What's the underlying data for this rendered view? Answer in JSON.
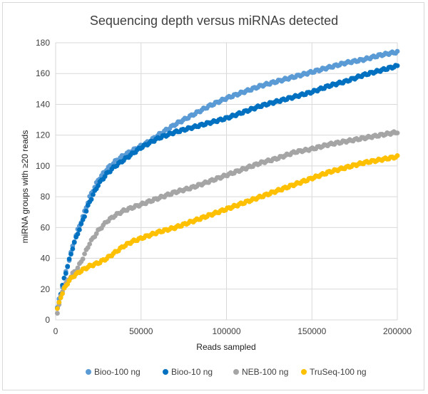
{
  "chart_data": {
    "type": "scatter",
    "title": "Sequencing depth versus miRNAs detected",
    "xlabel": "Reads sampled",
    "ylabel": "miRNA groups with ≥20 reads",
    "xlim": [
      0,
      200000
    ],
    "ylim": [
      0,
      180
    ],
    "x_ticks": [
      "0",
      "50000",
      "100000",
      "150000",
      "200000"
    ],
    "y_ticks": [
      "0",
      "20",
      "40",
      "60",
      "80",
      "100",
      "120",
      "140",
      "160",
      "180"
    ],
    "grid": true,
    "legend_position": "bottom",
    "series": [
      {
        "name": "Bioo-100 ng",
        "color": "#5b9bd5",
        "x": [
          1000,
          2000,
          3000,
          5000,
          7500,
          10000,
          12500,
          15000,
          20000,
          25000,
          30000,
          35000,
          40000,
          45000,
          50000,
          55000,
          60000,
          70000,
          80000,
          90000,
          100000,
          110000,
          120000,
          130000,
          140000,
          150000,
          160000,
          170000,
          180000,
          190000,
          200000
        ],
        "y": [
          8,
          13,
          17,
          27,
          37,
          48,
          57,
          64,
          80,
          91,
          98,
          103,
          107,
          110,
          113,
          116,
          120,
          127,
          133,
          139,
          144,
          148,
          152,
          155,
          158,
          161,
          164,
          167,
          169,
          172,
          174
        ]
      },
      {
        "name": "Bioo-10 ng",
        "color": "#0070c0",
        "x": [
          1000,
          2000,
          3000,
          5000,
          7500,
          10000,
          12500,
          15000,
          20000,
          25000,
          30000,
          35000,
          40000,
          45000,
          50000,
          55000,
          60000,
          70000,
          80000,
          90000,
          100000,
          110000,
          120000,
          130000,
          140000,
          150000,
          160000,
          170000,
          180000,
          190000,
          200000
        ],
        "y": [
          7,
          12,
          17,
          27,
          37,
          47,
          55,
          62,
          77,
          88,
          95,
          100,
          104,
          108,
          112,
          115,
          118,
          122,
          125,
          128,
          131,
          135,
          139,
          142,
          145,
          148,
          152,
          155,
          159,
          162,
          165
        ]
      },
      {
        "name": "NEB-100 ng",
        "color": "#a5a5a5",
        "x": [
          1000,
          2000,
          3000,
          5000,
          7500,
          10000,
          12500,
          15000,
          20000,
          25000,
          30000,
          35000,
          40000,
          45000,
          50000,
          55000,
          60000,
          70000,
          80000,
          90000,
          100000,
          110000,
          120000,
          130000,
          140000,
          150000,
          160000,
          170000,
          180000,
          190000,
          200000
        ],
        "y": [
          5,
          10,
          15,
          22,
          26,
          30,
          33,
          38,
          50,
          58,
          64,
          68,
          71,
          73,
          75,
          77,
          79,
          83,
          86,
          90,
          94,
          98,
          102,
          105,
          109,
          111,
          114,
          116,
          118,
          120,
          122
        ]
      },
      {
        "name": "TruSeq-100 ng",
        "color": "#ffc000",
        "x": [
          1000,
          2000,
          3000,
          5000,
          7500,
          10000,
          12500,
          15000,
          20000,
          25000,
          30000,
          35000,
          40000,
          45000,
          50000,
          55000,
          60000,
          70000,
          80000,
          90000,
          100000,
          110000,
          120000,
          130000,
          140000,
          150000,
          160000,
          170000,
          180000,
          190000,
          200000
        ],
        "y": [
          7,
          11,
          15,
          20,
          25,
          28,
          30,
          32,
          35,
          37,
          40,
          44,
          48,
          51,
          53,
          55,
          57,
          60,
          64,
          68,
          72,
          76,
          80,
          84,
          88,
          92,
          96,
          99,
          102,
          104,
          106
        ]
      }
    ]
  }
}
